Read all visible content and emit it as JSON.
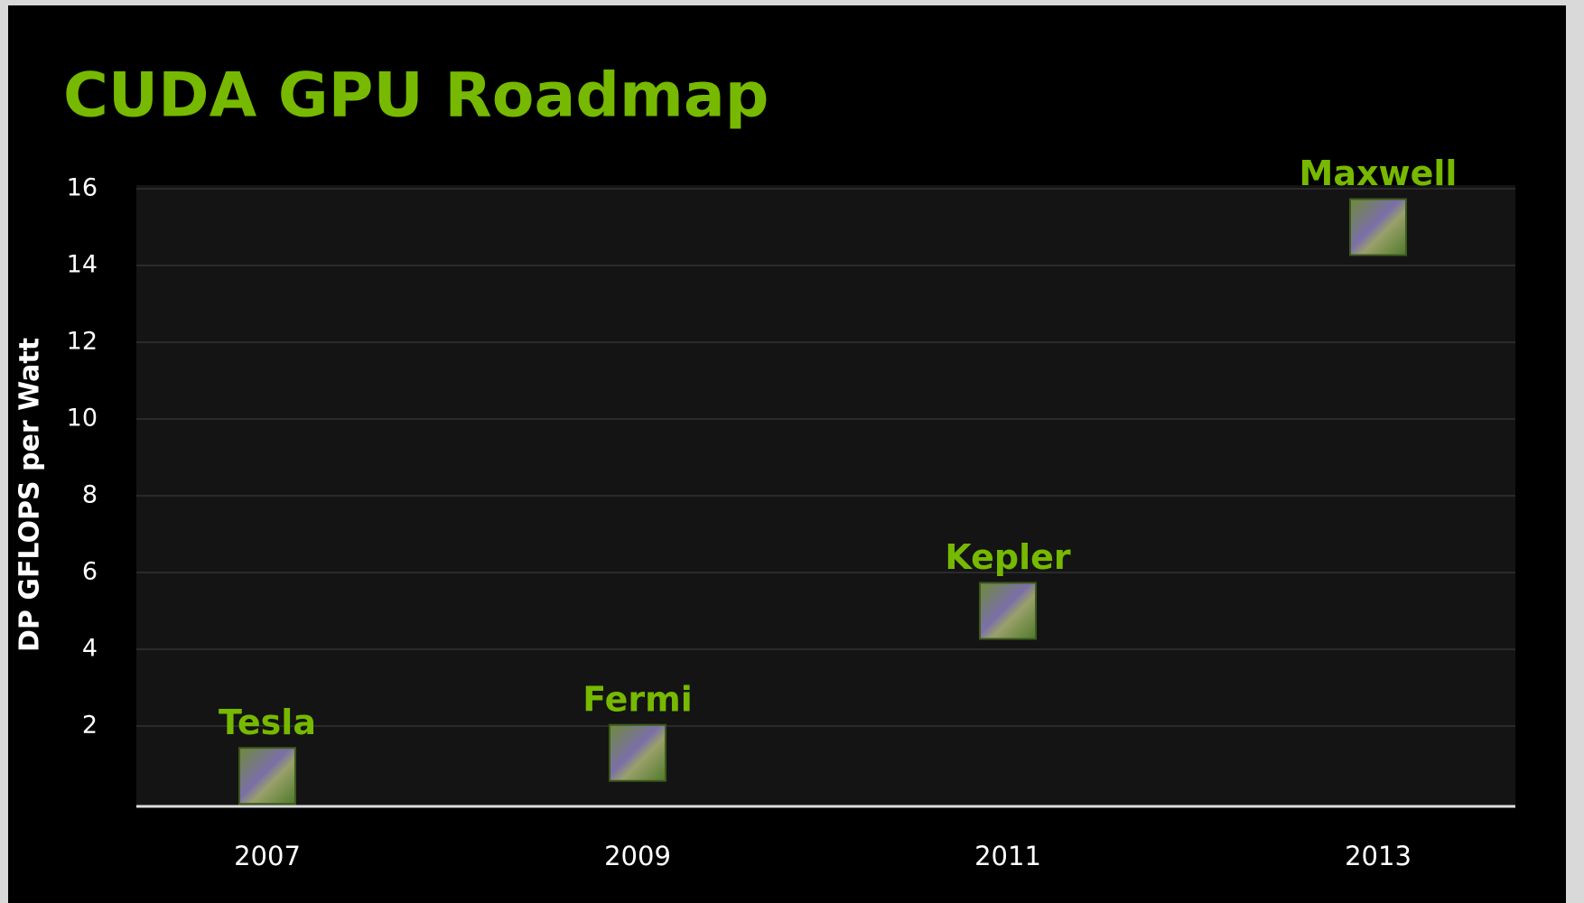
{
  "chart_data": {
    "type": "scatter",
    "title": "CUDA GPU Roadmap",
    "y_label": "DP GFLOPS per Watt",
    "categories": [
      "2007",
      "2009",
      "2011",
      "2013"
    ],
    "labels": [
      "Tesla",
      "Fermi",
      "Kepler",
      "Maxwell"
    ],
    "values": [
      0.7,
      1.3,
      5,
      15
    ],
    "color": "#76b900",
    "ylim": [
      0,
      16
    ],
    "yticks": [
      2,
      4,
      6,
      8,
      10,
      12,
      14,
      16
    ],
    "grid": true
  }
}
